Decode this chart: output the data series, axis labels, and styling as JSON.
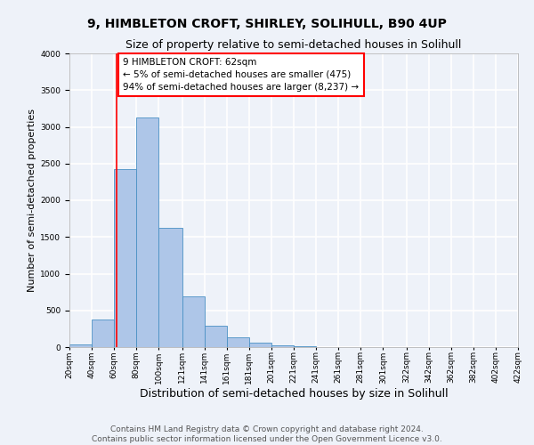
{
  "title": "9, HIMBLETON CROFT, SHIRLEY, SOLIHULL, B90 4UP",
  "subtitle": "Size of property relative to semi-detached houses in Solihull",
  "xlabel": "Distribution of semi-detached houses by size in Solihull",
  "ylabel": "Number of semi-detached properties",
  "bar_left_edges": [
    20,
    40,
    60,
    80,
    100,
    121,
    141,
    161,
    181,
    201,
    221,
    241,
    261,
    281,
    301,
    322,
    342,
    362,
    382,
    402
  ],
  "bar_widths": [
    20,
    20,
    20,
    20,
    21,
    20,
    20,
    20,
    20,
    20,
    20,
    20,
    20,
    20,
    21,
    20,
    20,
    20,
    20,
    20
  ],
  "bar_heights": [
    40,
    375,
    2430,
    3130,
    1630,
    695,
    295,
    135,
    60,
    30,
    10,
    5,
    2,
    1,
    0,
    0,
    0,
    0,
    0,
    0
  ],
  "bar_color": "#aec6e8",
  "bar_edge_color": "#4a90c4",
  "xlim": [
    20,
    422
  ],
  "ylim": [
    0,
    4000
  ],
  "yticks": [
    0,
    500,
    1000,
    1500,
    2000,
    2500,
    3000,
    3500,
    4000
  ],
  "xtick_labels": [
    "20sqm",
    "40sqm",
    "60sqm",
    "80sqm",
    "100sqm",
    "121sqm",
    "141sqm",
    "161sqm",
    "181sqm",
    "201sqm",
    "221sqm",
    "241sqm",
    "261sqm",
    "281sqm",
    "301sqm",
    "322sqm",
    "342sqm",
    "362sqm",
    "382sqm",
    "402sqm",
    "422sqm"
  ],
  "xtick_positions": [
    20,
    40,
    60,
    80,
    100,
    121,
    141,
    161,
    181,
    201,
    221,
    241,
    261,
    281,
    301,
    322,
    342,
    362,
    382,
    402,
    422
  ],
  "property_line_x": 62,
  "property_line_color": "red",
  "annotation_box_text": "9 HIMBLETON CROFT: 62sqm\n← 5% of semi-detached houses are smaller (475)\n94% of semi-detached houses are larger (8,237) →",
  "footer_line1": "Contains HM Land Registry data © Crown copyright and database right 2024.",
  "footer_line2": "Contains public sector information licensed under the Open Government Licence v3.0.",
  "background_color": "#eef2f9",
  "grid_color": "#ffffff",
  "title_fontsize": 10,
  "subtitle_fontsize": 9,
  "xlabel_fontsize": 9,
  "ylabel_fontsize": 8,
  "annot_fontsize": 7.5,
  "footer_fontsize": 6.5,
  "tick_fontsize": 6.5
}
